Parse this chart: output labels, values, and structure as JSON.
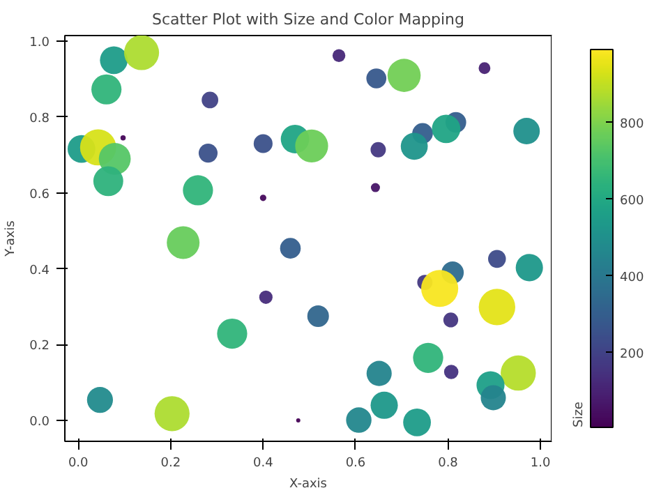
{
  "chart_data": {
    "type": "scatter",
    "title": "Scatter Plot with Size and Color Mapping",
    "xlabel": "X-axis",
    "ylabel": "Y-axis",
    "clabel": "Size",
    "x": [
      0.077,
      0.137,
      0.061,
      0.285,
      0.097,
      0.007,
      0.043,
      0.079,
      0.065,
      0.281,
      0.4,
      0.469,
      0.259,
      0.4,
      0.227,
      0.459,
      0.406,
      0.333,
      0.047,
      0.203,
      0.476,
      0.564,
      0.645,
      0.705,
      0.879,
      0.505,
      0.649,
      0.745,
      0.727,
      0.817,
      0.796,
      0.97,
      0.643,
      0.906,
      0.976,
      0.81,
      0.75,
      0.782,
      0.906,
      0.519,
      0.806,
      0.757,
      0.807,
      0.952,
      0.651,
      0.892,
      0.898,
      0.662,
      0.607,
      0.733
    ],
    "values": [
      0.95,
      0.97,
      0.873,
      0.845,
      0.745,
      0.716,
      0.72,
      0.69,
      0.631,
      0.705,
      0.73,
      0.742,
      0.607,
      0.587,
      0.469,
      0.454,
      0.325,
      0.229,
      0.054,
      0.018,
      0.0,
      0.962,
      0.902,
      0.91,
      0.929,
      0.724,
      0.714,
      0.757,
      0.723,
      0.786,
      0.769,
      0.763,
      0.614,
      0.426,
      0.403,
      0.39,
      0.364,
      0.348,
      0.299,
      0.275,
      0.265,
      0.165,
      0.128,
      0.125,
      0.124,
      0.093,
      0.06,
      0.04,
      0.001,
      -0.005
    ],
    "sizes": [
      0.56,
      0.89,
      0.66,
      0.2,
      0.02,
      0.56,
      0.95,
      0.74,
      0.65,
      0.26,
      0.26,
      0.59,
      0.66,
      0.03,
      0.78,
      0.31,
      0.13,
      0.66,
      0.49,
      0.89,
      0.01,
      0.12,
      0.29,
      0.8,
      0.1,
      0.79,
      0.17,
      0.31,
      0.53,
      0.31,
      0.59,
      0.51,
      0.06,
      0.23,
      0.54,
      0.36,
      0.17,
      1,
      0.97,
      0.34,
      0.16,
      0.66,
      0.15,
      0.9,
      0.46,
      0.57,
      0.46,
      0.54,
      0.47,
      0.56
    ],
    "cvalues": [
      550,
      870,
      650,
      200,
      20,
      550,
      930,
      730,
      640,
      250,
      250,
      580,
      650,
      30,
      760,
      300,
      130,
      650,
      480,
      870,
      10,
      120,
      280,
      780,
      100,
      770,
      170,
      300,
      520,
      300,
      580,
      500,
      60,
      230,
      530,
      350,
      170,
      980,
      950,
      330,
      160,
      650,
      150,
      880,
      450,
      560,
      450,
      530,
      460,
      550
    ],
    "clim": [
      5,
      990
    ],
    "cticks": [
      200,
      400,
      600,
      800
    ],
    "xlim": [
      -0.029,
      1.024
    ],
    "ylim": [
      -0.055,
      1.015
    ],
    "xticks": [
      {
        "value": 0,
        "label": "0.0"
      },
      {
        "value": 0.2,
        "label": "0.2"
      },
      {
        "value": 0.4,
        "label": "0.4"
      },
      {
        "value": 0.6,
        "label": "0.6"
      },
      {
        "value": 0.8,
        "label": "0.8"
      },
      {
        "value": 1,
        "label": "1.0"
      }
    ],
    "yticks": [
      {
        "value": 0,
        "label": "0.0"
      },
      {
        "value": 0.2,
        "label": "0.2"
      },
      {
        "value": 0.4,
        "label": "0.4"
      },
      {
        "value": 0.6,
        "label": "0.6"
      },
      {
        "value": 0.8,
        "label": "0.8"
      },
      {
        "value": 1,
        "label": "1.0"
      }
    ],
    "marker": "circle",
    "grid": false
  }
}
